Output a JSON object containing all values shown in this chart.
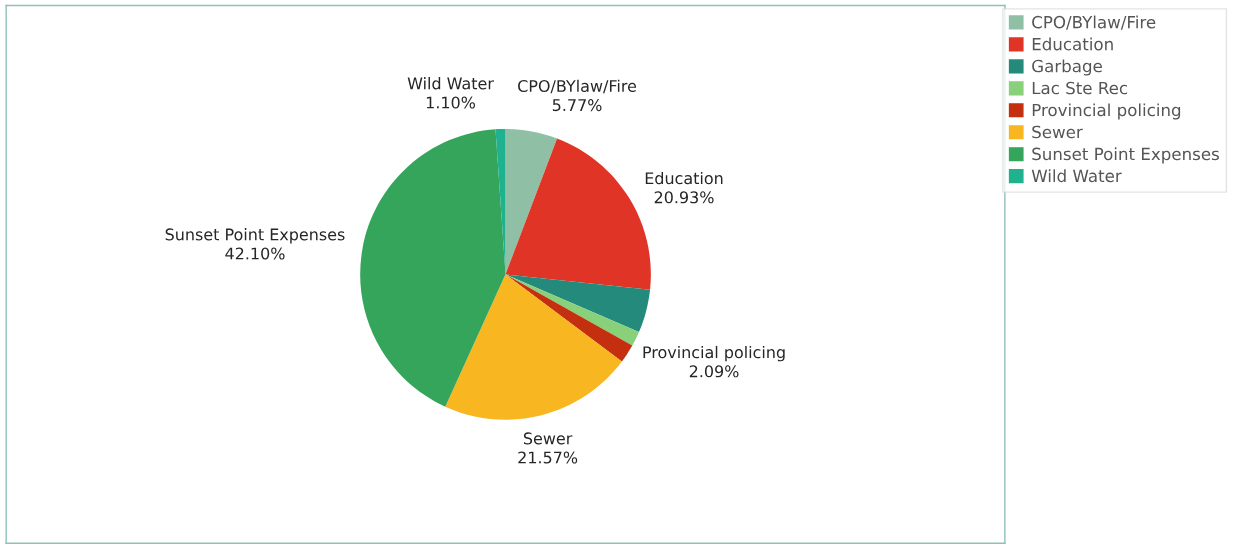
{
  "chart_data": {
    "type": "pie",
    "categories": [
      "CPO/BYlaw/Fire",
      "Education",
      "Garbage",
      "Lac Ste Rec",
      "Provincial policing",
      "Sewer",
      "Sunset Point Expenses",
      "Wild Water"
    ],
    "values": [
      5.77,
      20.93,
      4.8,
      1.64,
      2.09,
      21.57,
      42.1,
      1.1
    ],
    "value_labels": [
      "5.77%",
      "20.93%",
      null,
      null,
      "2.09%",
      "21.57%",
      "42.10%",
      "1.10%"
    ],
    "colors": [
      "#8fbfa4",
      "#e03426",
      "#248a7b",
      "#88d07a",
      "#c4300f",
      "#f8b620",
      "#35a55c",
      "#1fb28e"
    ],
    "legend": "top right"
  }
}
